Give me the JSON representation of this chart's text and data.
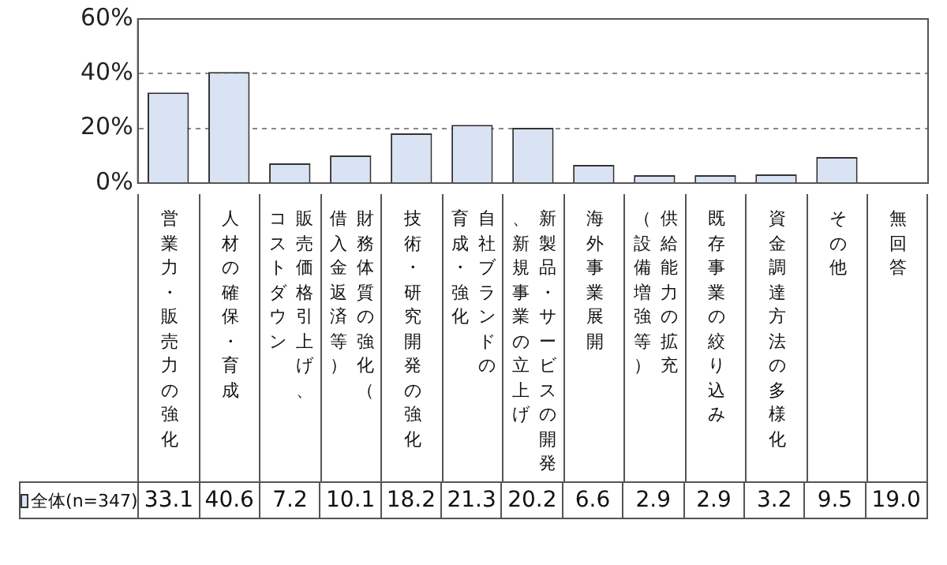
{
  "chart_data": {
    "type": "bar",
    "categories": [
      "営業力・販売力の強化",
      "人材の確保・育成",
      "販売価格引上げ、コストダウン",
      "財務体質の強化（借入金返済等）",
      "技術・研究開発の強化",
      "自社ブランドの育成・強化",
      "新製品・サービスの開発、新規事業の立上げ",
      "海外事業展開",
      "供給能力の拡充（設備増強等）",
      "既存事業の絞り込み",
      "資金調達方法の多様化",
      "その他",
      "無回答"
    ],
    "series": [
      {
        "name": "全体(n=347)",
        "color": "#dae3f3",
        "values": [
          33.1,
          40.6,
          7.2,
          10.1,
          18.2,
          21.3,
          20.2,
          6.6,
          2.9,
          2.9,
          3.2,
          9.5,
          null
        ],
        "value_labels": [
          "33.1",
          "40.6",
          "7.2",
          "10.1",
          "18.2",
          "21.3",
          "20.2",
          "6.6",
          "2.9",
          "2.9",
          "3.2",
          "9.5",
          "19.0"
        ]
      }
    ],
    "ylim": [
      0,
      60
    ],
    "yticks": [
      {
        "value": 0,
        "label": "0%"
      },
      {
        "value": 20,
        "label": "20%"
      },
      {
        "value": 40,
        "label": "40%"
      },
      {
        "value": 60,
        "label": "60%"
      }
    ],
    "grid": "y",
    "legend": "bottom"
  }
}
